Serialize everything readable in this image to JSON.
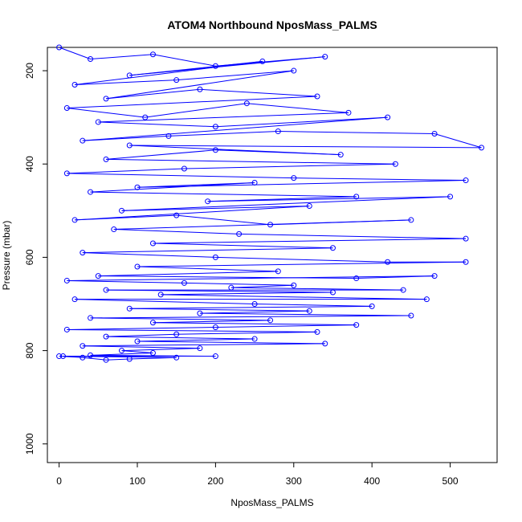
{
  "chart_data": {
    "type": "line",
    "title": "ATOM4 Northbound NposMass_PALMS",
    "xlabel": "NposMass_PALMS",
    "ylabel": "Pressure (mbar)",
    "xlim": [
      -15,
      560
    ],
    "ylim": [
      1040,
      150
    ],
    "y_reversed": true,
    "grid": false,
    "series_color": "#0000ff",
    "x_ticks": [
      0,
      100,
      200,
      300,
      400,
      500
    ],
    "y_ticks": [
      200,
      400,
      600,
      800,
      1000
    ],
    "series": [
      {
        "marker": "circle",
        "style": "line+points",
        "points": [
          [
            0,
            150
          ],
          [
            40,
            175
          ],
          [
            120,
            165
          ],
          [
            200,
            190
          ],
          [
            340,
            170
          ],
          [
            90,
            210
          ],
          [
            260,
            180
          ],
          [
            20,
            230
          ],
          [
            150,
            220
          ],
          [
            300,
            200
          ],
          [
            60,
            260
          ],
          [
            180,
            240
          ],
          [
            330,
            255
          ],
          [
            10,
            280
          ],
          [
            110,
            300
          ],
          [
            240,
            270
          ],
          [
            370,
            290
          ],
          [
            50,
            310
          ],
          [
            200,
            320
          ],
          [
            420,
            300
          ],
          [
            30,
            350
          ],
          [
            140,
            340
          ],
          [
            280,
            330
          ],
          [
            480,
            335
          ],
          [
            540,
            365
          ],
          [
            90,
            360
          ],
          [
            360,
            380
          ],
          [
            200,
            370
          ],
          [
            60,
            390
          ],
          [
            430,
            400
          ],
          [
            160,
            410
          ],
          [
            10,
            420
          ],
          [
            300,
            430
          ],
          [
            520,
            435
          ],
          [
            100,
            450
          ],
          [
            250,
            440
          ],
          [
            40,
            460
          ],
          [
            380,
            470
          ],
          [
            190,
            480
          ],
          [
            500,
            470
          ],
          [
            80,
            500
          ],
          [
            320,
            490
          ],
          [
            20,
            520
          ],
          [
            150,
            510
          ],
          [
            270,
            530
          ],
          [
            450,
            520
          ],
          [
            70,
            540
          ],
          [
            230,
            550
          ],
          [
            520,
            560
          ],
          [
            120,
            570
          ],
          [
            350,
            580
          ],
          [
            30,
            590
          ],
          [
            200,
            600
          ],
          [
            420,
            610
          ],
          [
            520,
            610
          ],
          [
            100,
            620
          ],
          [
            280,
            630
          ],
          [
            50,
            640
          ],
          [
            380,
            645
          ],
          [
            480,
            640
          ],
          [
            10,
            650
          ],
          [
            160,
            655
          ],
          [
            300,
            660
          ],
          [
            220,
            665
          ],
          [
            440,
            670
          ],
          [
            60,
            670
          ],
          [
            350,
            675
          ],
          [
            130,
            680
          ],
          [
            470,
            690
          ],
          [
            20,
            690
          ],
          [
            250,
            700
          ],
          [
            400,
            705
          ],
          [
            90,
            710
          ],
          [
            320,
            715
          ],
          [
            180,
            720
          ],
          [
            450,
            725
          ],
          [
            40,
            730
          ],
          [
            270,
            735
          ],
          [
            120,
            740
          ],
          [
            380,
            745
          ],
          [
            200,
            750
          ],
          [
            10,
            755
          ],
          [
            330,
            760
          ],
          [
            150,
            765
          ],
          [
            60,
            770
          ],
          [
            250,
            775
          ],
          [
            100,
            780
          ],
          [
            340,
            785
          ],
          [
            30,
            790
          ],
          [
            180,
            795
          ],
          [
            80,
            800
          ],
          [
            120,
            805
          ],
          [
            40,
            810
          ],
          [
            200,
            812
          ],
          [
            5,
            812
          ],
          [
            150,
            815
          ],
          [
            90,
            818
          ],
          [
            60,
            820
          ],
          [
            30,
            815
          ],
          [
            0,
            812
          ]
        ]
      }
    ]
  }
}
